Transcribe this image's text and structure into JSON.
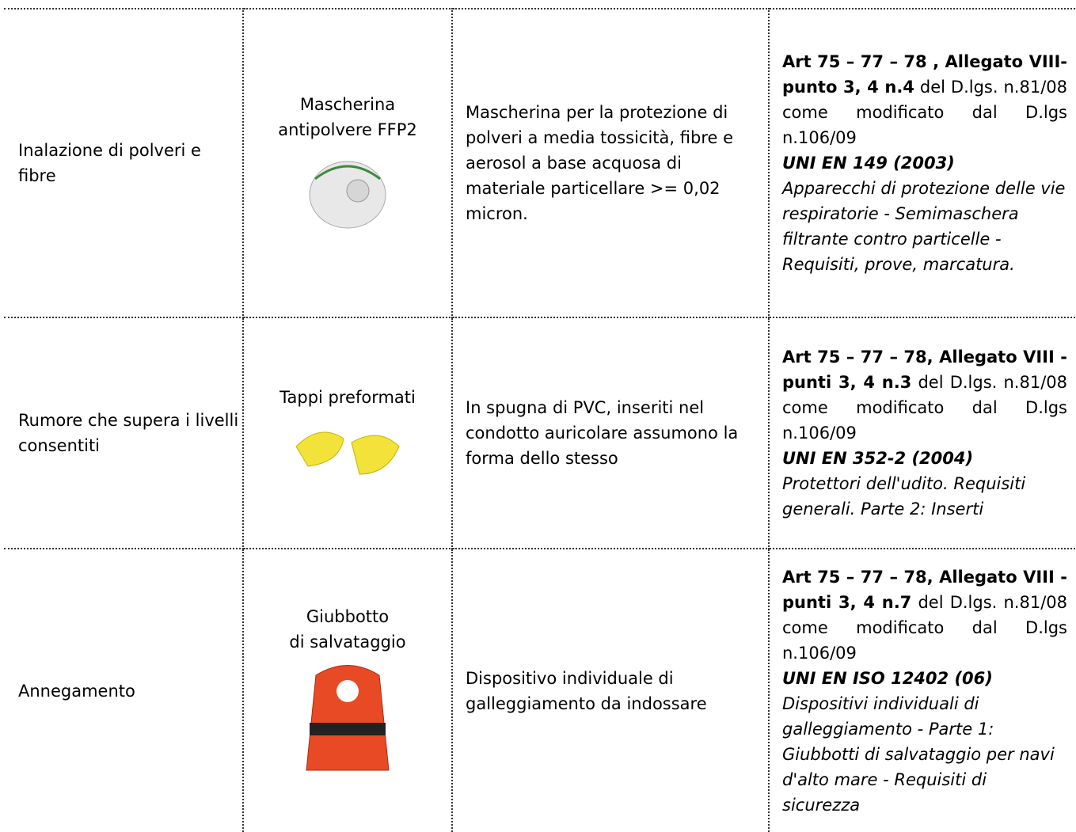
{
  "table": {
    "rows": [
      {
        "risk": "Inalazione di polveri e fibre",
        "dpi": [
          "Mascherina",
          "antipolvere FFP2"
        ],
        "description": "Mascherina per la protezione di polveri a media tossicità, fibre e aerosol a base acquosa di materiale particellare >= 0,02 micron.",
        "law_bold": "Art 75 – 77 – 78 , Allegato VIII-punto 3, 4 n.4",
        "law_text": " del D.lgs. n.81/08 come modificato dal D.lgs n.106/09",
        "standard": "UNI EN 149  (2003)",
        "standard_desc": "Apparecchi di protezione delle vie respiratorie - Semimaschera filtrante contro particelle - Requisiti, prove, marcatura."
      },
      {
        "risk": "Rumore che supera i livelli consentiti",
        "dpi": [
          "Tappi preformati"
        ],
        "description": "In spugna di PVC, inseriti nel condotto auricolare assumono la forma dello stesso",
        "law_bold": "Art 75 – 77 – 78, Allegato VIII  - punti 3, 4 n.3",
        "law_text": " del D.lgs. n.81/08 come modificato dal D.lgs n.106/09",
        "standard": "UNI EN 352-2 (2004)",
        "standard_desc": "Protettori dell'udito. Requisiti generali. Parte 2: Inserti"
      },
      {
        "risk": "Annegamento",
        "dpi": [
          "Giubbotto",
          "di salvataggio"
        ],
        "description": "Dispositivo individuale di galleggiamento da indossare",
        "law_bold": "Art 75 – 77 – 78, Allegato VIII -punti 3, 4 n.7",
        "law_text": " del D.lgs. n.81/08 come modificato dal D.lgs n.106/09",
        "standard": "UNI EN ISO 12402 (06)",
        "standard_desc": "Dispositivi individuali di galleggiamento - Parte 1: Giubbotti di salvataggio per navi d'alto mare - Requisiti di sicurezza"
      }
    ]
  }
}
